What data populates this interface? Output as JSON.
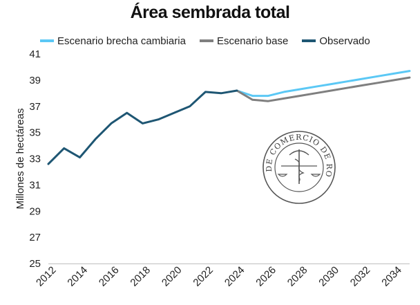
{
  "chart_data": {
    "type": "line",
    "title": "Área sembrada total",
    "ylabel": "Millones de hectáreas",
    "xlabel": "",
    "ylim": [
      25,
      41
    ],
    "yticks": [
      25,
      27,
      29,
      31,
      33,
      35,
      37,
      39,
      41
    ],
    "xlim": [
      2012,
      2035
    ],
    "xticks": [
      2012,
      2014,
      2016,
      2018,
      2020,
      2022,
      2024,
      2026,
      2028,
      2030,
      2032,
      2034
    ],
    "grid": false,
    "legend_position": "top",
    "series": [
      {
        "name": "Escenario brecha cambiaria",
        "color": "#5bc8f5",
        "x": [
          2024,
          2025,
          2026,
          2027,
          2028,
          2029,
          2030,
          2031,
          2032,
          2033,
          2034,
          2035
        ],
        "y": [
          38.2,
          37.8,
          37.8,
          38.1,
          38.3,
          38.5,
          38.7,
          38.9,
          39.1,
          39.3,
          39.5,
          39.7
        ]
      },
      {
        "name": "Escenario base",
        "color": "#7f7f7f",
        "x": [
          2024,
          2025,
          2026,
          2027,
          2028,
          2029,
          2030,
          2031,
          2032,
          2033,
          2034,
          2035
        ],
        "y": [
          38.2,
          37.5,
          37.4,
          37.6,
          37.8,
          38.0,
          38.2,
          38.4,
          38.6,
          38.8,
          39.0,
          39.2
        ]
      },
      {
        "name": "Observado",
        "color": "#1e5673",
        "x": [
          2012,
          2013,
          2014,
          2015,
          2016,
          2017,
          2018,
          2019,
          2020,
          2021,
          2022,
          2023,
          2024
        ],
        "y": [
          32.6,
          33.8,
          33.1,
          34.5,
          35.7,
          36.5,
          35.7,
          36.0,
          36.5,
          37.0,
          38.1,
          38.0,
          38.2
        ]
      }
    ]
  },
  "watermark": {
    "name": "seal-logo",
    "text": "BOLSA DE COMERCIO DE ROSARIO"
  }
}
